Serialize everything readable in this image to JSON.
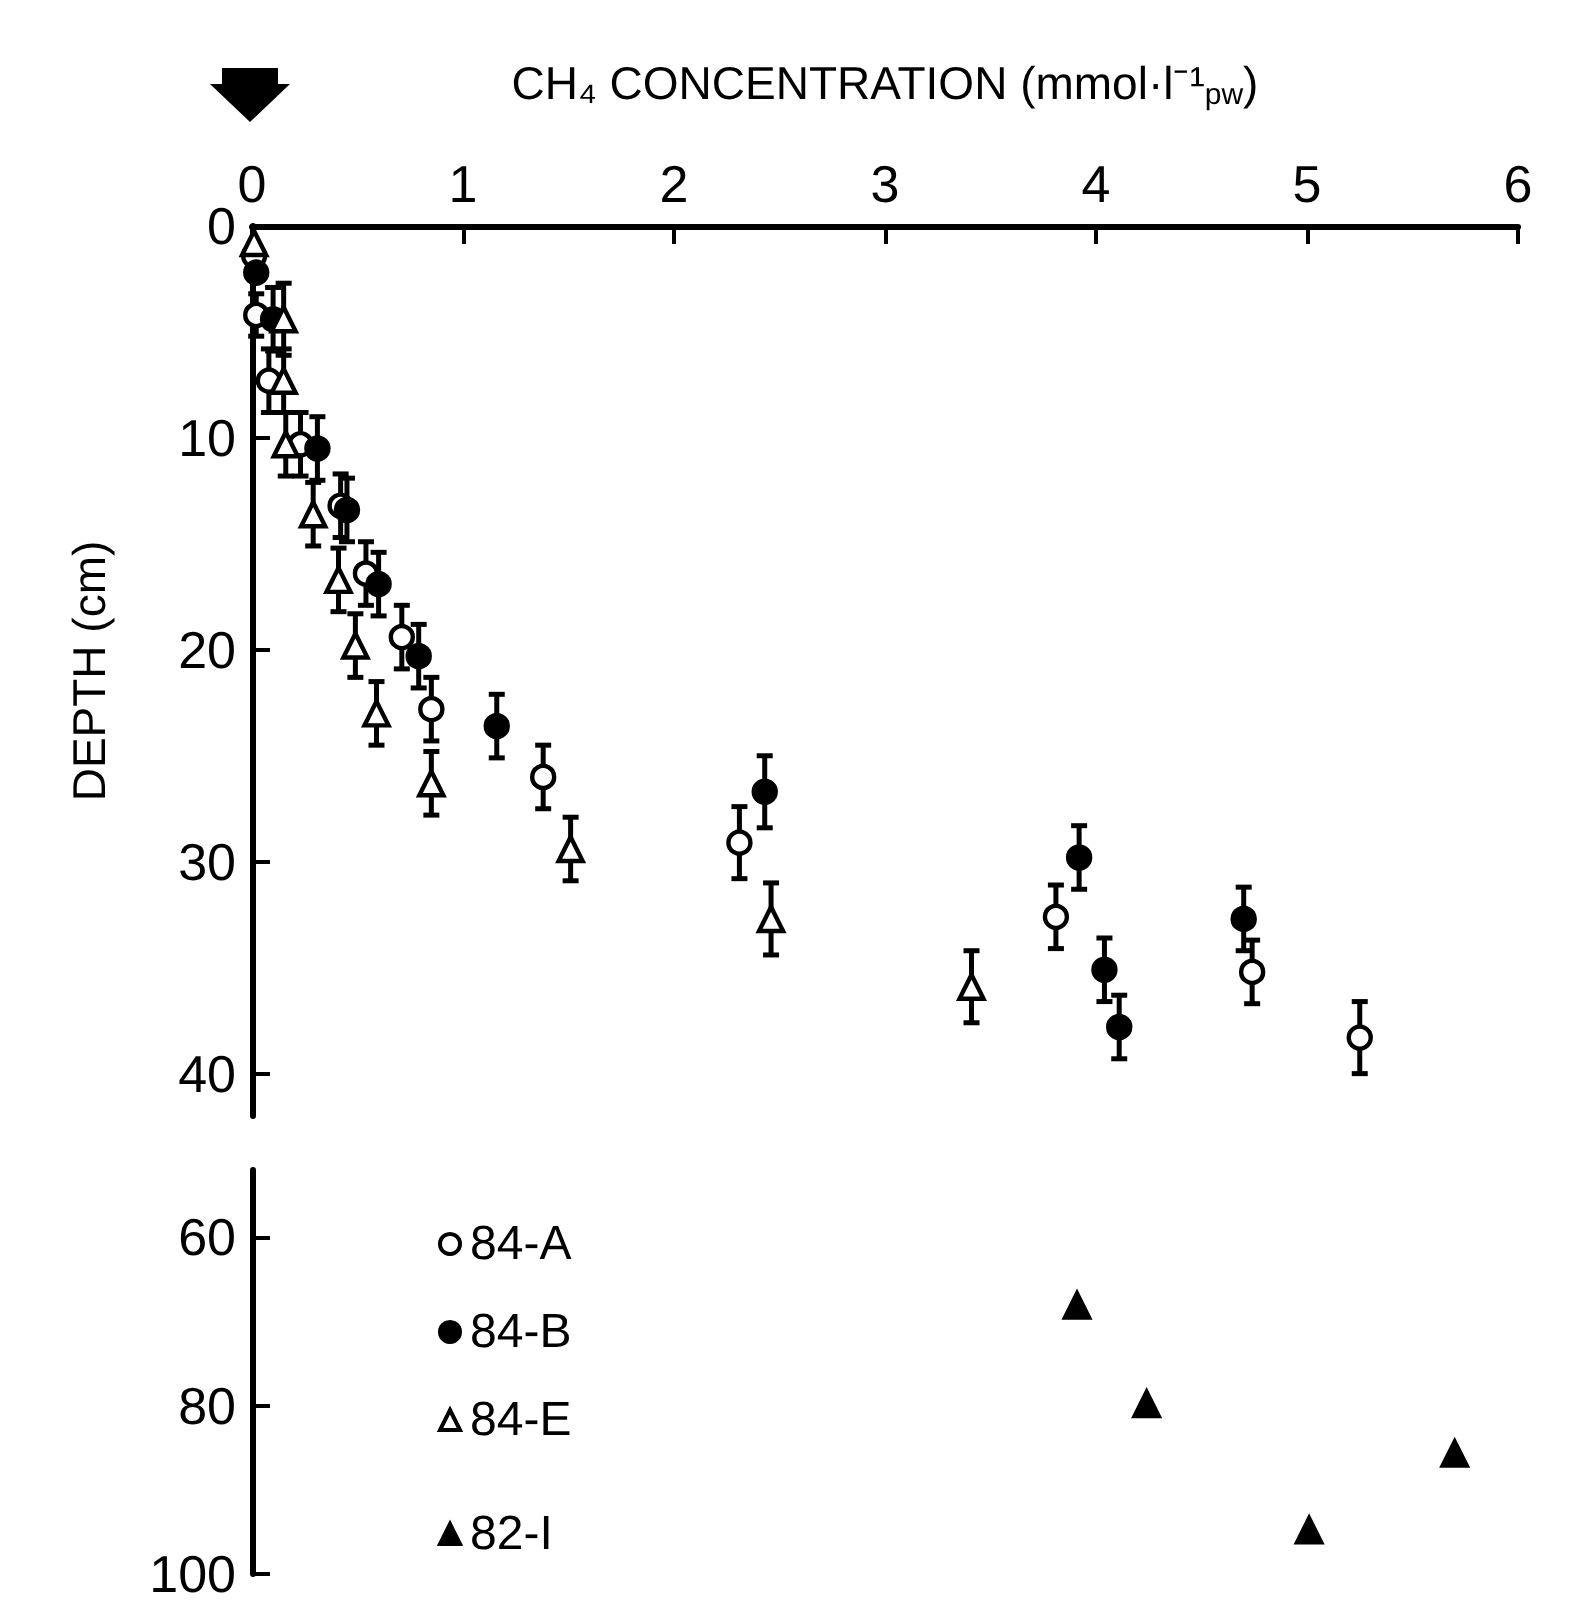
{
  "chart_data": [
    {
      "type": "scatter",
      "xlabel": "CH₄ CONCENTRATION (mmol·l⁻¹$_{pw}$)",
      "ylabel": "DEPTH (cm)",
      "xlim": [
        0,
        6
      ],
      "xticks": [
        0,
        1,
        2,
        3,
        4,
        5,
        6
      ],
      "ylim": [
        42,
        0
      ],
      "yticks": [
        0,
        10,
        20,
        30,
        40
      ],
      "legend": "bottom left",
      "grid": false,
      "series": [
        {
          "name": "84-A",
          "color": "#ffffff",
          "marker": "circle",
          "x": [
            0.01,
            0.02,
            0.08,
            0.23,
            0.42,
            0.54,
            0.71,
            0.85,
            1.38,
            2.31,
            3.81,
            4.74,
            5.25
          ],
          "values": [
            1.4,
            4.2,
            7.3,
            10.3,
            13.2,
            16.4,
            19.4,
            22.8,
            26.0,
            29.1,
            32.6,
            35.2,
            38.3
          ],
          "errors": [
            null,
            1,
            1.5,
            1.5,
            1.5,
            1.5,
            1.5,
            1.5,
            1.5,
            1.7,
            1.5,
            1.5,
            1.7
          ]
        },
        {
          "name": "84-B",
          "color": "#000000",
          "marker": "circle",
          "x": [
            0.02,
            0.1,
            0.31,
            0.45,
            0.6,
            0.79,
            1.16,
            2.43,
            3.92,
            4.04,
            4.11,
            4.7
          ],
          "values": [
            2.2,
            4.4,
            10.5,
            13.4,
            16.9,
            20.3,
            23.6,
            26.7,
            29.8,
            35.1,
            37.8,
            32.7
          ],
          "errors": [
            null,
            1.5,
            1.5,
            1.5,
            1.5,
            1.5,
            1.5,
            1.7,
            1.5,
            1.5,
            1.5,
            1.5
          ]
        },
        {
          "name": "84-E",
          "color": "#ffffff",
          "marker": "triangle",
          "x": [
            0.01,
            0.15,
            0.15,
            0.16,
            0.29,
            0.41,
            0.49,
            0.59,
            0.85,
            1.51,
            2.46,
            3.41
          ],
          "values": [
            0.8,
            4.4,
            7.3,
            10.3,
            13.6,
            16.7,
            19.8,
            23.0,
            26.3,
            29.4,
            32.7,
            35.9
          ],
          "errors": [
            null,
            1.7,
            1.5,
            1.5,
            1.5,
            1.5,
            1.5,
            1.5,
            1.5,
            1.5,
            1.7,
            1.7
          ]
        }
      ]
    },
    {
      "type": "scatter",
      "xlim": [
        0,
        6
      ],
      "xticks": [
        0,
        1,
        2,
        3,
        4,
        5,
        6
      ],
      "ylim": [
        100,
        52
      ],
      "yticks": [
        60,
        80,
        100
      ],
      "tick_labels": "y",
      "legend": "left",
      "grid": false,
      "series": [
        {
          "name": "82-I",
          "color": "#000000",
          "marker": "triangle",
          "x": [
            3.91,
            4.24,
            5.01,
            5.7
          ],
          "values": [
            68.1,
            79.8,
            94.8,
            85.7
          ]
        }
      ]
    }
  ]
}
